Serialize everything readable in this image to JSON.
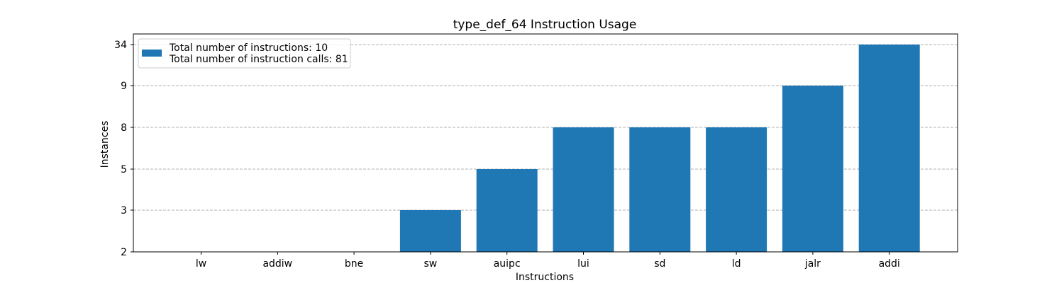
{
  "chart_data": {
    "type": "bar",
    "title": "type_def_64 Instruction Usage",
    "xlabel": "Instructions",
    "ylabel": "Instances",
    "categories": [
      "lw",
      "addiw",
      "bne",
      "sw",
      "auipc",
      "lui",
      "sd",
      "ld",
      "jalr",
      "addi"
    ],
    "values": [
      2,
      2,
      2,
      3,
      5,
      8,
      8,
      8,
      9,
      34
    ],
    "y_ticks": [
      "2",
      "3",
      "5",
      "8",
      "9",
      "34"
    ],
    "y_axis_scale": "categorical (each distinct value equally spaced)",
    "grid": "horizontal dashed",
    "bar_color": "#1f77b4",
    "legend": {
      "placement": "top-left",
      "lines": [
        "Total number of instructions: 10",
        "Total number of instruction calls: 81"
      ]
    }
  }
}
